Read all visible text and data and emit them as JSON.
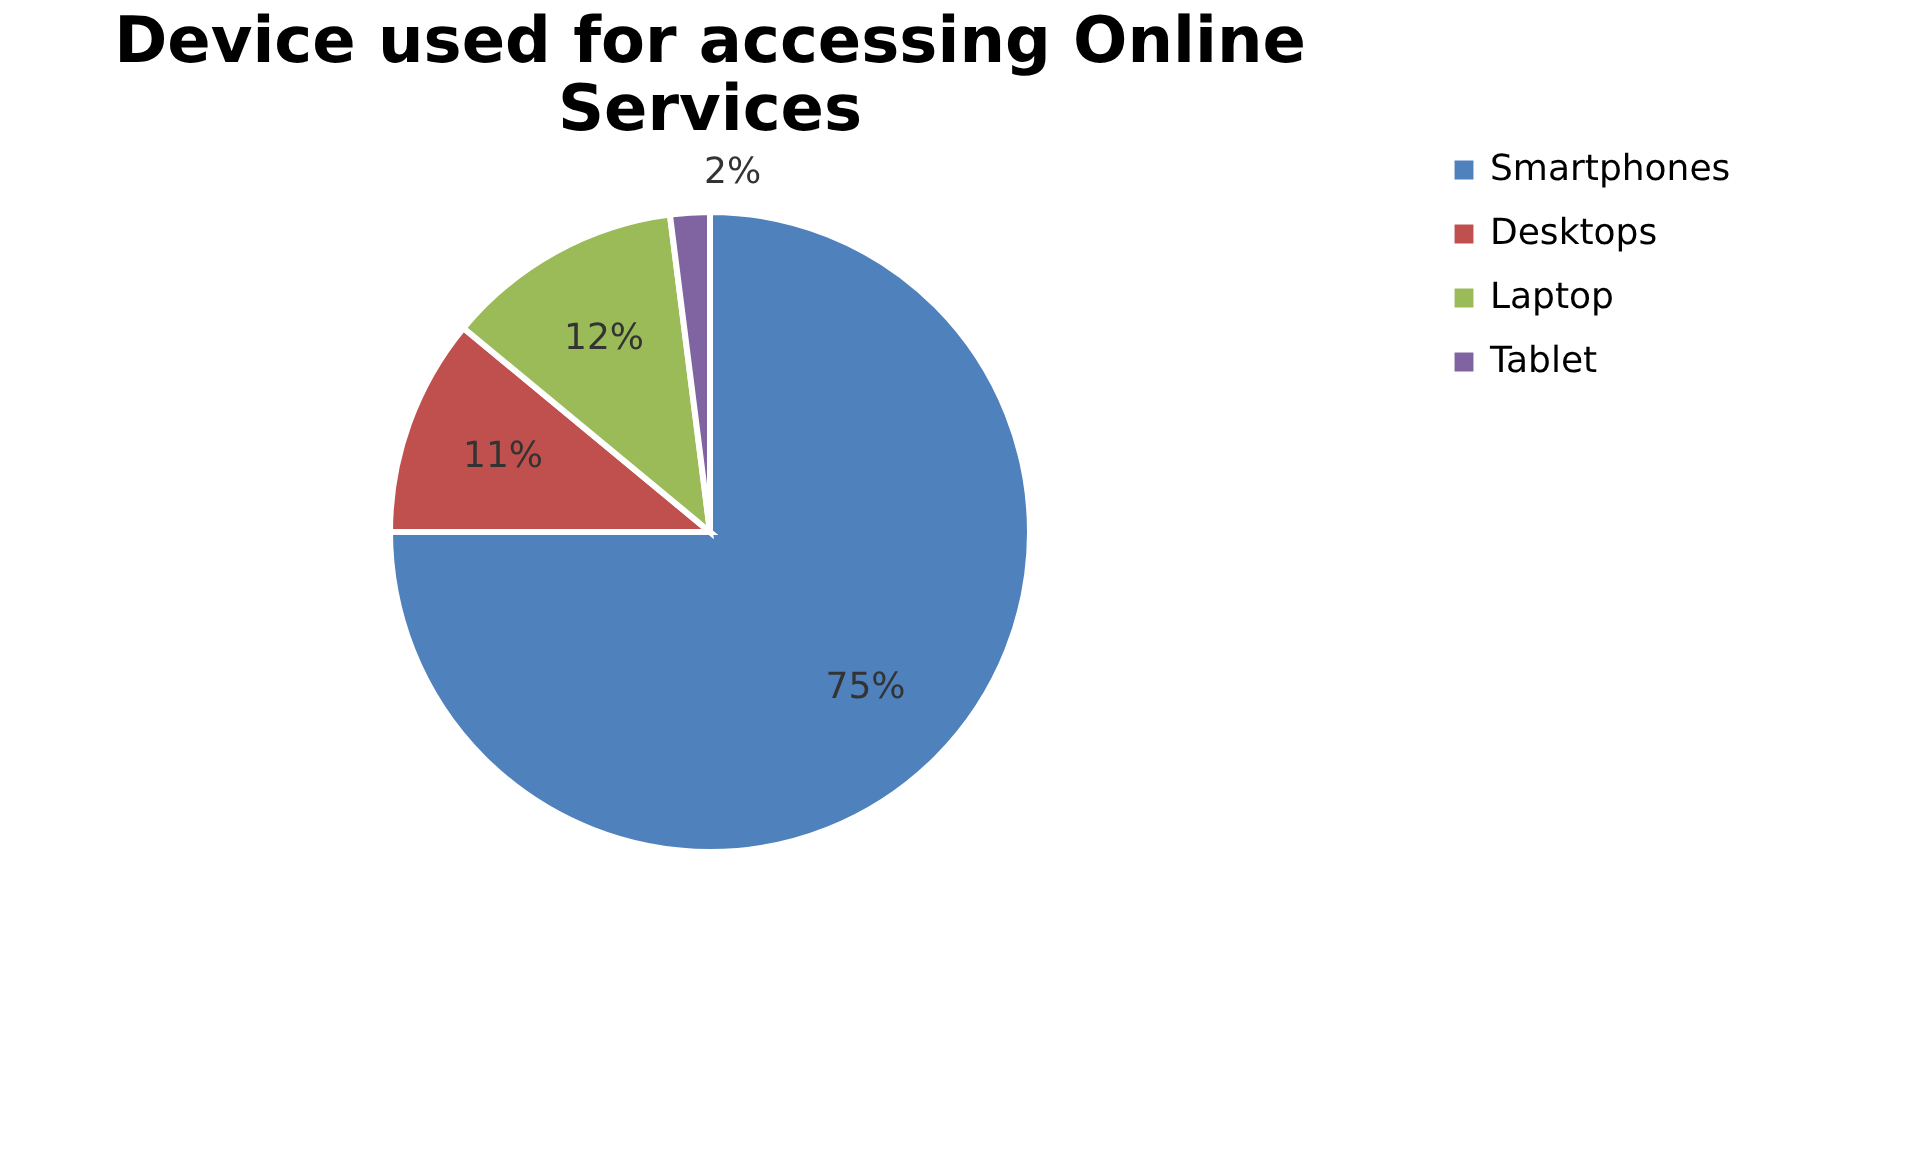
{
  "chart_data": {
    "type": "pie",
    "title": "Device used for accessing Online Services",
    "categories": [
      "Smartphones",
      "Desktops",
      "Laptop",
      "Tablet"
    ],
    "values": [
      75,
      11,
      12,
      2
    ],
    "value_labels": [
      "75%",
      "11%",
      "12%",
      "2%"
    ],
    "colors": [
      "#4f81bd",
      "#c0504d",
      "#9bbb59",
      "#8064a2"
    ],
    "legend": "right"
  }
}
